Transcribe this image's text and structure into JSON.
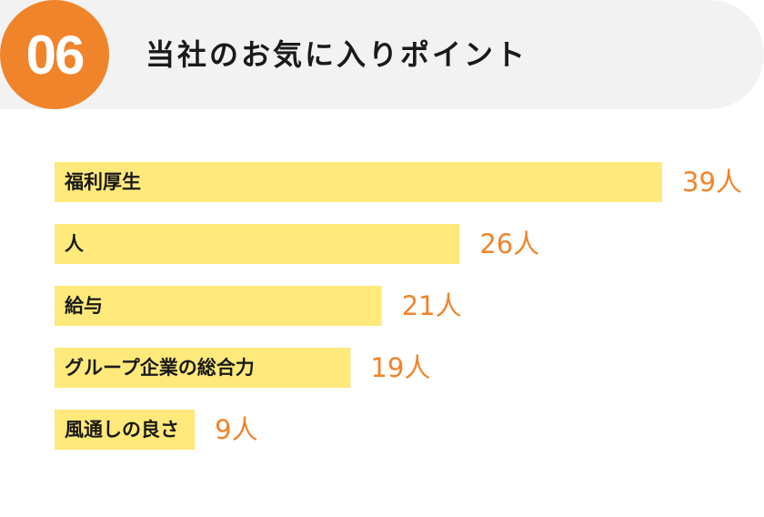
{
  "header": {
    "number": "06",
    "title": "当社のお気に入りポイント"
  },
  "colors": {
    "accent": "#f0842b",
    "bar": "#ffe97a",
    "band": "#f2f2f2"
  },
  "chart_data": {
    "type": "bar",
    "orientation": "horizontal",
    "categories": [
      "福利厚生",
      "人",
      "給与",
      "グループ企業の総合力",
      "風通しの良さ"
    ],
    "values": [
      39,
      26,
      21,
      19,
      9
    ],
    "value_labels": [
      "39人",
      "26人",
      "21人",
      "19人",
      "9人"
    ],
    "unit": "人",
    "title": "",
    "xlabel": "",
    "ylabel": "",
    "grid": false,
    "legend": "none"
  }
}
